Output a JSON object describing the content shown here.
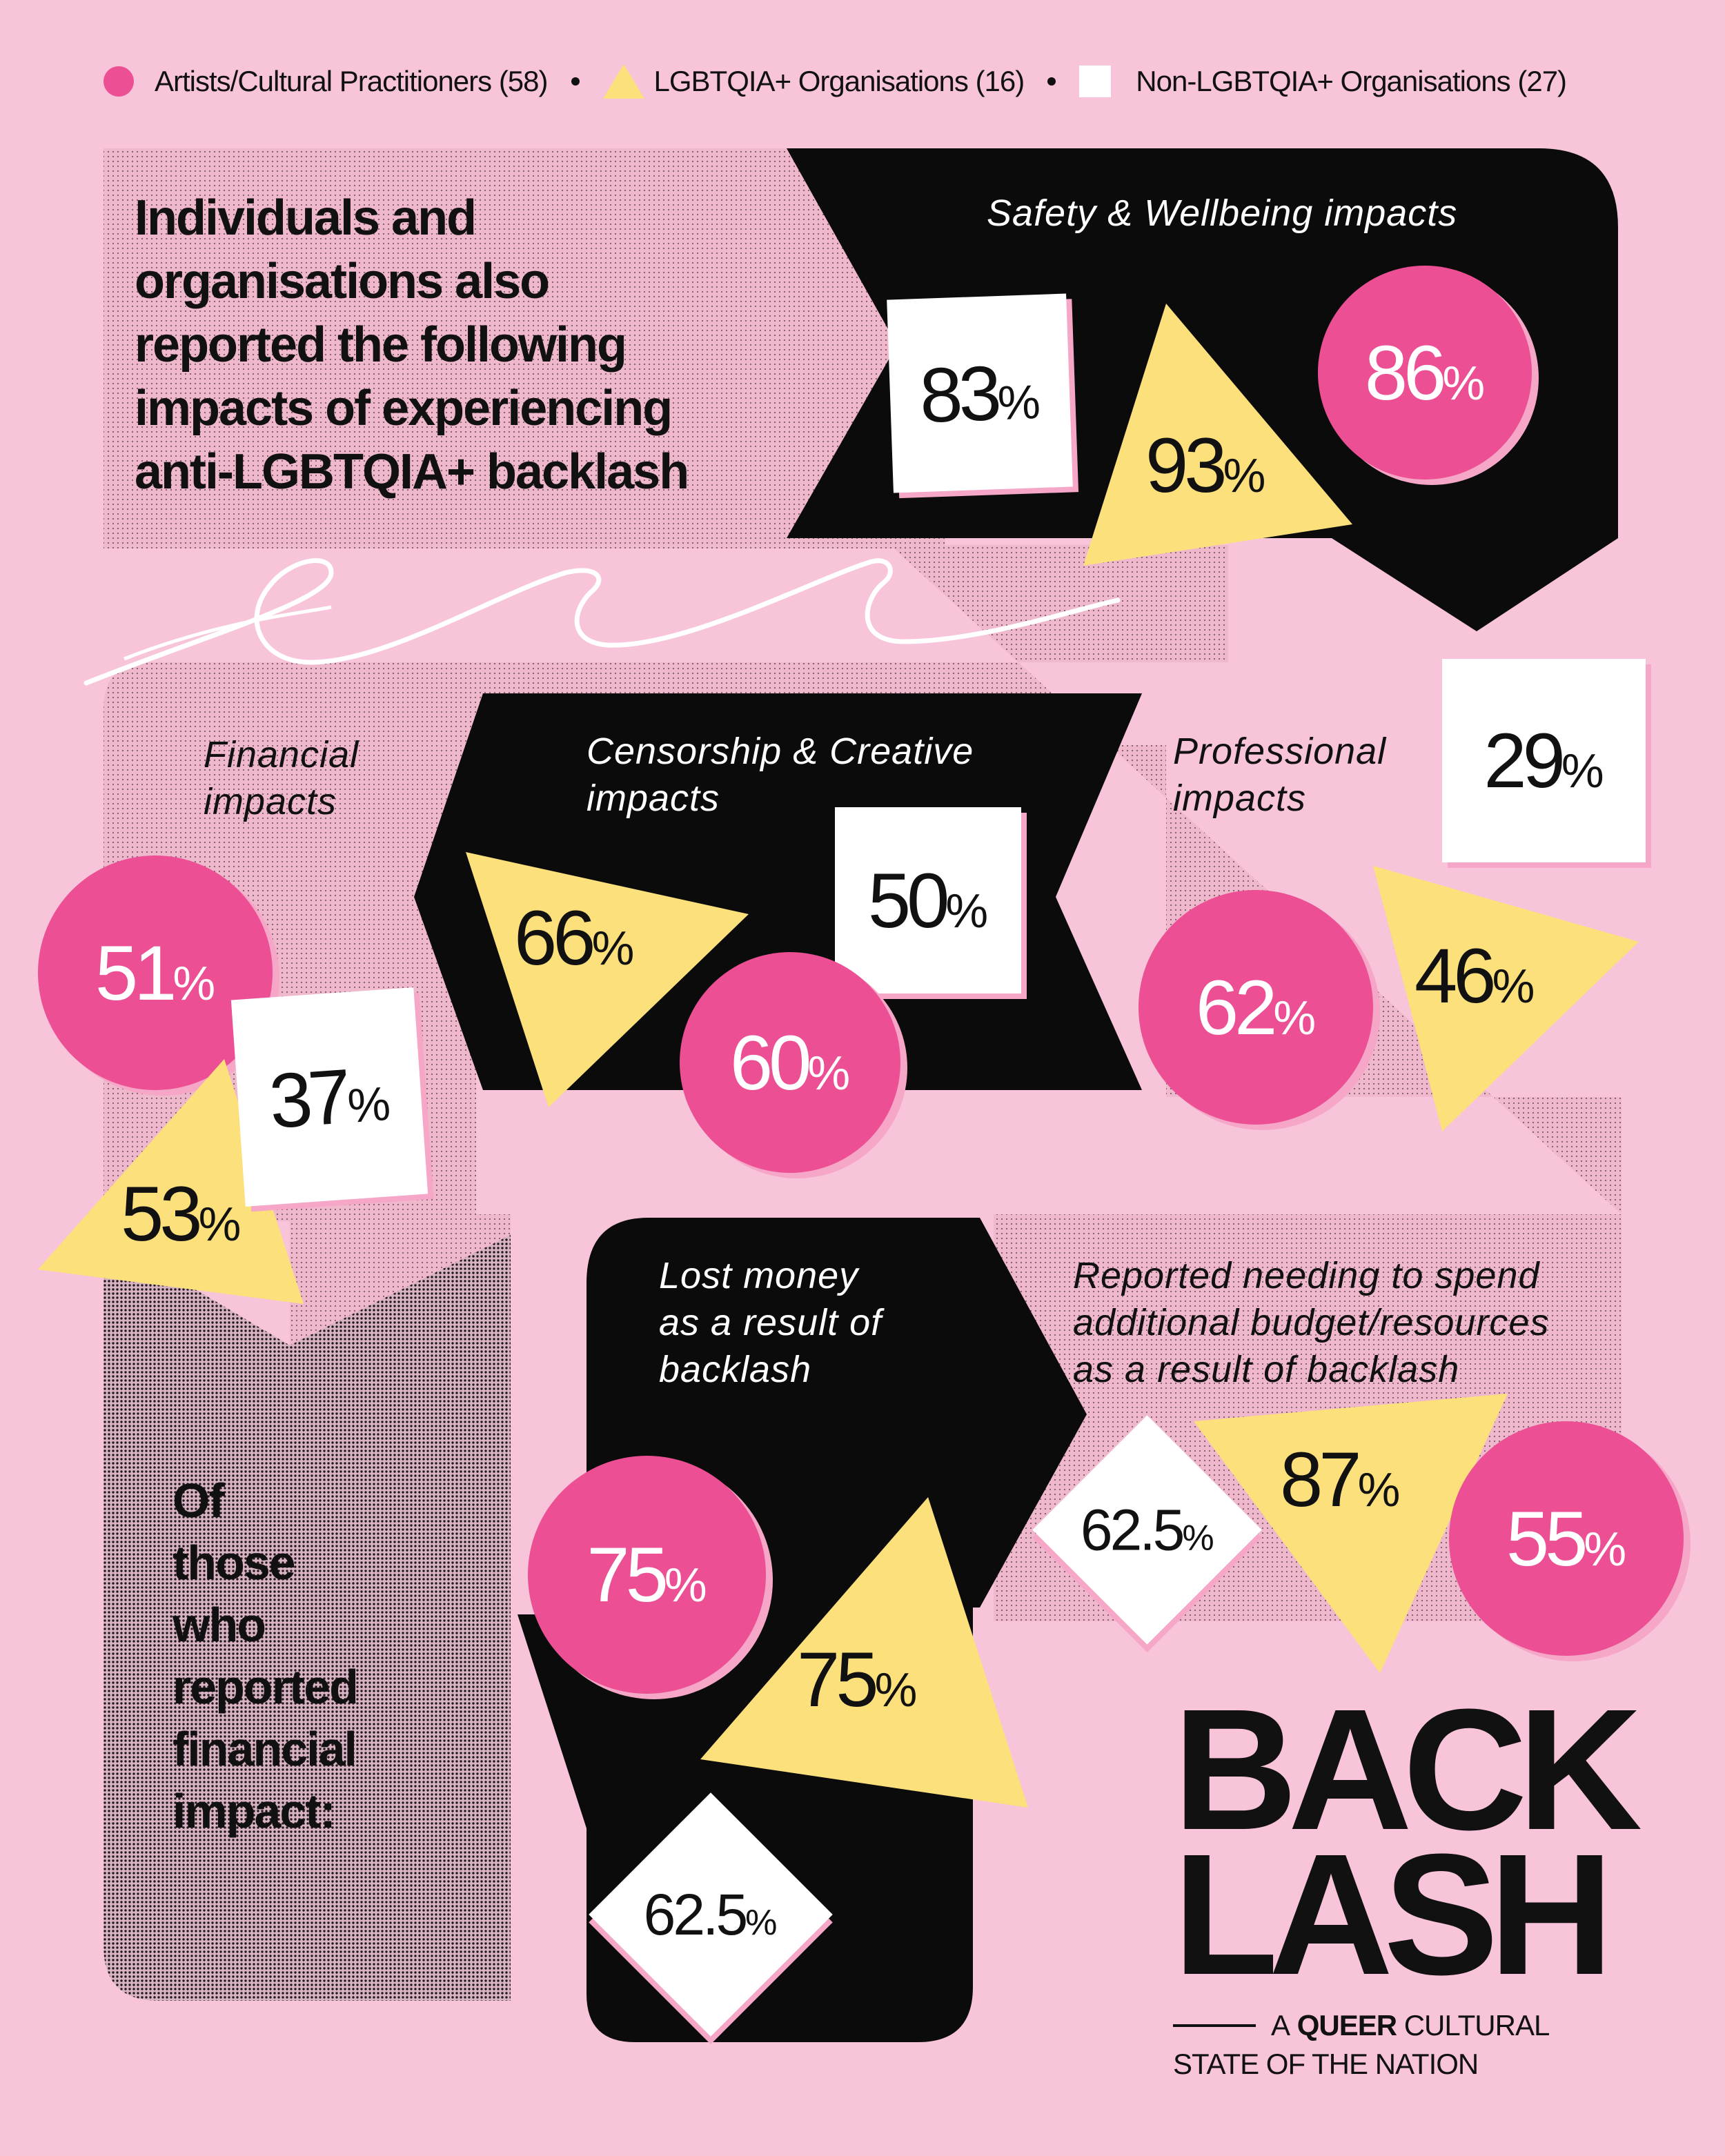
{
  "legend": {
    "artists": "Artists/Cultural Practitioners (58)",
    "lgbtqia_orgs": "LGBTQIA+ Organisations (16)",
    "non_lgbtqia_orgs": "Non-LGBTQIA+ Organisations (27)"
  },
  "colors": {
    "background": "#f7c4d9",
    "artists": "#ec4f93",
    "lgbtqia_orgs": "#fbe07c",
    "non_lgbtqia_orgs": "#ffffff",
    "panel": "#0b0b0b"
  },
  "intro": [
    "Individuals and",
    "organisations also",
    "reported the following",
    "impacts of experiencing",
    "anti-LGBTQIA+ backlash"
  ],
  "sections": {
    "safety": {
      "title": "Safety & Wellbeing impacts",
      "non_lgbtqia": "83",
      "lgbtqia": "93",
      "artists": "86"
    },
    "financial": {
      "title_1": "Financial",
      "title_2": "impacts",
      "artists": "51",
      "non_lgbtqia": "37",
      "lgbtqia": "53"
    },
    "censorship": {
      "title_1": "Censorship & Creative",
      "title_2": "impacts",
      "lgbtqia": "66",
      "non_lgbtqia": "50",
      "artists": "60"
    },
    "professional": {
      "title_1": "Professional",
      "title_2": "impacts",
      "non_lgbtqia": "29",
      "artists": "62",
      "lgbtqia": "46"
    },
    "lost_money": {
      "title_1": "Lost money",
      "title_2": "as a result of",
      "title_3": "backlash",
      "artists": "75",
      "lgbtqia": "75",
      "non_lgbtqia": "62.5"
    },
    "additional_budget": {
      "title_1": "Reported needing to spend",
      "title_2": "additional budget/resources",
      "title_3": "as a result of backlash",
      "non_lgbtqia": "62.5",
      "lgbtqia": "87",
      "artists": "55"
    }
  },
  "financial_note": [
    "Of",
    "those",
    "who",
    "reported",
    "financial",
    "impact:"
  ],
  "percent_sign": "%",
  "logo": {
    "line1": "BACK",
    "line2": "LASH",
    "tag_a": "A",
    "tag_queer": "QUEER",
    "tag_cultural": "CULTURAL",
    "tag_line2": "STATE OF THE NATION"
  }
}
